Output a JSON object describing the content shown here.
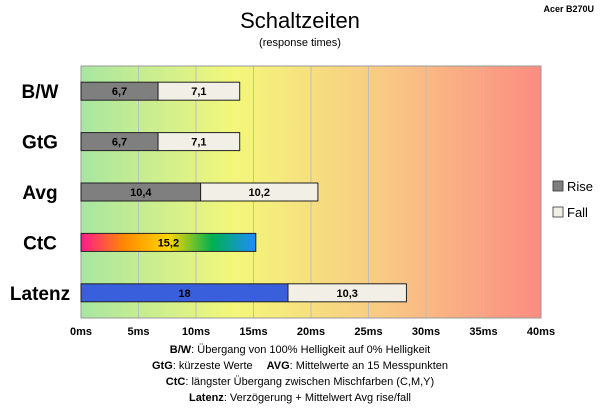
{
  "chart_data": {
    "type": "bar",
    "orientation": "horizontal",
    "stacked": true,
    "title": "Schaltzeiten",
    "subtitle": "(response times)",
    "corner_label": "Acer B270U",
    "categories": [
      "B/W",
      "GtG",
      "Avg",
      "CtC",
      "Latenz"
    ],
    "series": [
      {
        "name": "Rise",
        "values": [
          6.7,
          6.7,
          10.4,
          15.2,
          18
        ],
        "labels": [
          "6,7",
          "6,7",
          "10,4",
          "15,2",
          "18"
        ]
      },
      {
        "name": "Fall",
        "values": [
          7.1,
          7.1,
          10.2,
          null,
          10.3
        ],
        "labels": [
          "7,1",
          "7,1",
          "10,2",
          "",
          "10,3"
        ]
      }
    ],
    "xlim": [
      0,
      40
    ],
    "xticks": [
      0,
      5,
      10,
      15,
      20,
      25,
      30,
      35,
      40
    ],
    "xtick_labels": [
      "0ms",
      "5ms",
      "10ms",
      "15ms",
      "20ms",
      "25ms",
      "30ms",
      "35ms",
      "40ms"
    ],
    "grid": true,
    "legend_position": "right",
    "colors": {
      "rise": "#7f7f7f",
      "fall": "#f2f0e6",
      "latenz_rise": "#3a5fdc",
      "ctc_gradient": [
        "#ff1a8c",
        "#ff8a00",
        "#ffd700",
        "#00b050",
        "#1e8cff"
      ],
      "background_gradient": [
        "#a8e6a1",
        "#f3f77a",
        "#f9c884",
        "#fb8c82"
      ],
      "gridline": "#bfbfbf"
    },
    "notes": [
      {
        "bold": "B/W",
        "text": ":  Übergang von 100% Helligkeit auf 0% Helligkeit"
      },
      {
        "bold": "GtG",
        "text": ": kürzeste  Werte",
        "bold2": "AVG",
        "text2": ": Mittelwerte  an 15 Messpunkten"
      },
      {
        "bold": "CtC",
        "text": ": längster Übergang  zwischen Mischfarben  (C,M,Y)"
      },
      {
        "bold": "Latenz",
        "text": ": Verzögerung  + Mittelwert  Avg rise/fall"
      }
    ]
  }
}
